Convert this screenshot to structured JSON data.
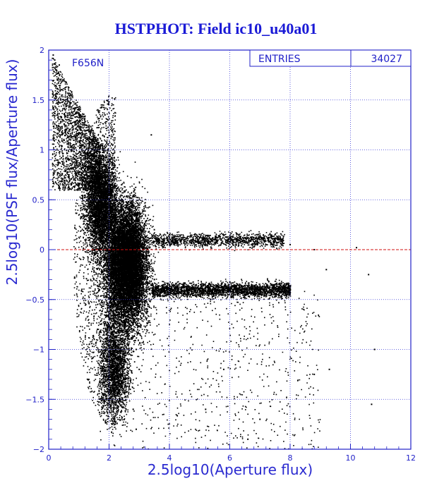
{
  "chart_data": {
    "type": "scatter",
    "title": "HSTPHOT: Field ic10_u40a01",
    "xlabel": "2.5log10(Aperture flux)",
    "ylabel": "2.5log10(PSF flux/Aperture flux)",
    "xlim": [
      0,
      12
    ],
    "ylim": [
      -2,
      2
    ],
    "x_ticks": [
      "0",
      "2",
      "4",
      "6",
      "8",
      "10",
      "12"
    ],
    "y_ticks": [
      "-2",
      "-1.5",
      "-1",
      "-0.5",
      "0",
      "0.5",
      "1",
      "1.5",
      "2"
    ],
    "filter_label": "F656N",
    "stats": {
      "label": "ENTRIES",
      "value": "34027"
    },
    "grid": true,
    "reference_line_y": 0,
    "colors": {
      "title": "#1a1ad6",
      "axes": "#2020c8",
      "grid": "#3a3ad8",
      "points": "#000000",
      "reference_line": "#d01010"
    },
    "series": [
      {
        "points": [
          [
            0.15,
            1.95
          ],
          [
            0.2,
            1.9
          ],
          [
            0.25,
            1.8
          ],
          [
            0.3,
            1.7
          ],
          [
            0.35,
            1.85
          ],
          [
            0.4,
            1.6
          ],
          [
            0.5,
            1.5
          ],
          [
            0.55,
            1.4
          ],
          [
            0.6,
            1.3
          ],
          [
            0.7,
            1.45
          ],
          [
            0.8,
            1.2
          ],
          [
            0.9,
            1.1
          ],
          [
            1.0,
            1.35
          ],
          [
            1.1,
            1.0
          ],
          [
            1.2,
            0.95
          ],
          [
            1.3,
            1.1
          ],
          [
            1.4,
            0.9
          ],
          [
            1.5,
            0.8
          ],
          [
            1.6,
            0.75
          ],
          [
            1.7,
            0.7
          ],
          [
            1.8,
            0.65
          ],
          [
            1.9,
            0.6
          ],
          [
            2.0,
            0.55
          ],
          [
            2.1,
            0.5
          ],
          [
            2.2,
            0.45
          ],
          [
            2.3,
            0.4
          ],
          [
            2.4,
            0.35
          ],
          [
            2.5,
            0.3
          ],
          [
            2.6,
            0.25
          ],
          [
            2.7,
            0.2
          ],
          [
            2.8,
            0.15
          ],
          [
            2.9,
            0.1
          ],
          [
            3.0,
            0.05
          ],
          [
            2.5,
            -0.2
          ],
          [
            2.6,
            -0.4
          ],
          [
            2.7,
            -0.6
          ],
          [
            2.8,
            -0.8
          ],
          [
            2.9,
            -1.0
          ],
          [
            3.0,
            -1.2
          ],
          [
            2.7,
            -1.4
          ],
          [
            2.8,
            -1.6
          ],
          [
            2.9,
            -1.8
          ],
          [
            3.5,
            0.2
          ],
          [
            4.0,
            0.15
          ],
          [
            4.5,
            0.1
          ],
          [
            5.0,
            0.12
          ],
          [
            5.5,
            0.1
          ],
          [
            6.0,
            0.08
          ],
          [
            6.5,
            0.12
          ],
          [
            7.0,
            0.1
          ],
          [
            7.5,
            0.15
          ],
          [
            8.0,
            0.05
          ],
          [
            3.5,
            -0.3
          ],
          [
            4.0,
            -0.35
          ],
          [
            4.5,
            -0.38
          ],
          [
            5.0,
            -0.4
          ],
          [
            5.5,
            -0.42
          ],
          [
            6.0,
            -0.4
          ],
          [
            6.5,
            -0.45
          ],
          [
            7.0,
            -0.4
          ],
          [
            7.5,
            -0.38
          ],
          [
            8.0,
            -0.4
          ],
          [
            8.8,
            0.0
          ],
          [
            9.2,
            -0.2
          ],
          [
            10.2,
            0.02
          ],
          [
            10.6,
            -0.25
          ],
          [
            10.8,
            -1.0
          ],
          [
            10.7,
            -1.55
          ],
          [
            9.3,
            -1.2
          ],
          [
            8.8,
            -1.25
          ],
          [
            6.6,
            -1.9
          ],
          [
            7.0,
            -1.7
          ],
          [
            5.2,
            -1.6
          ],
          [
            5.8,
            -1.2
          ],
          [
            3.4,
            1.15
          ]
        ]
      }
    ]
  }
}
